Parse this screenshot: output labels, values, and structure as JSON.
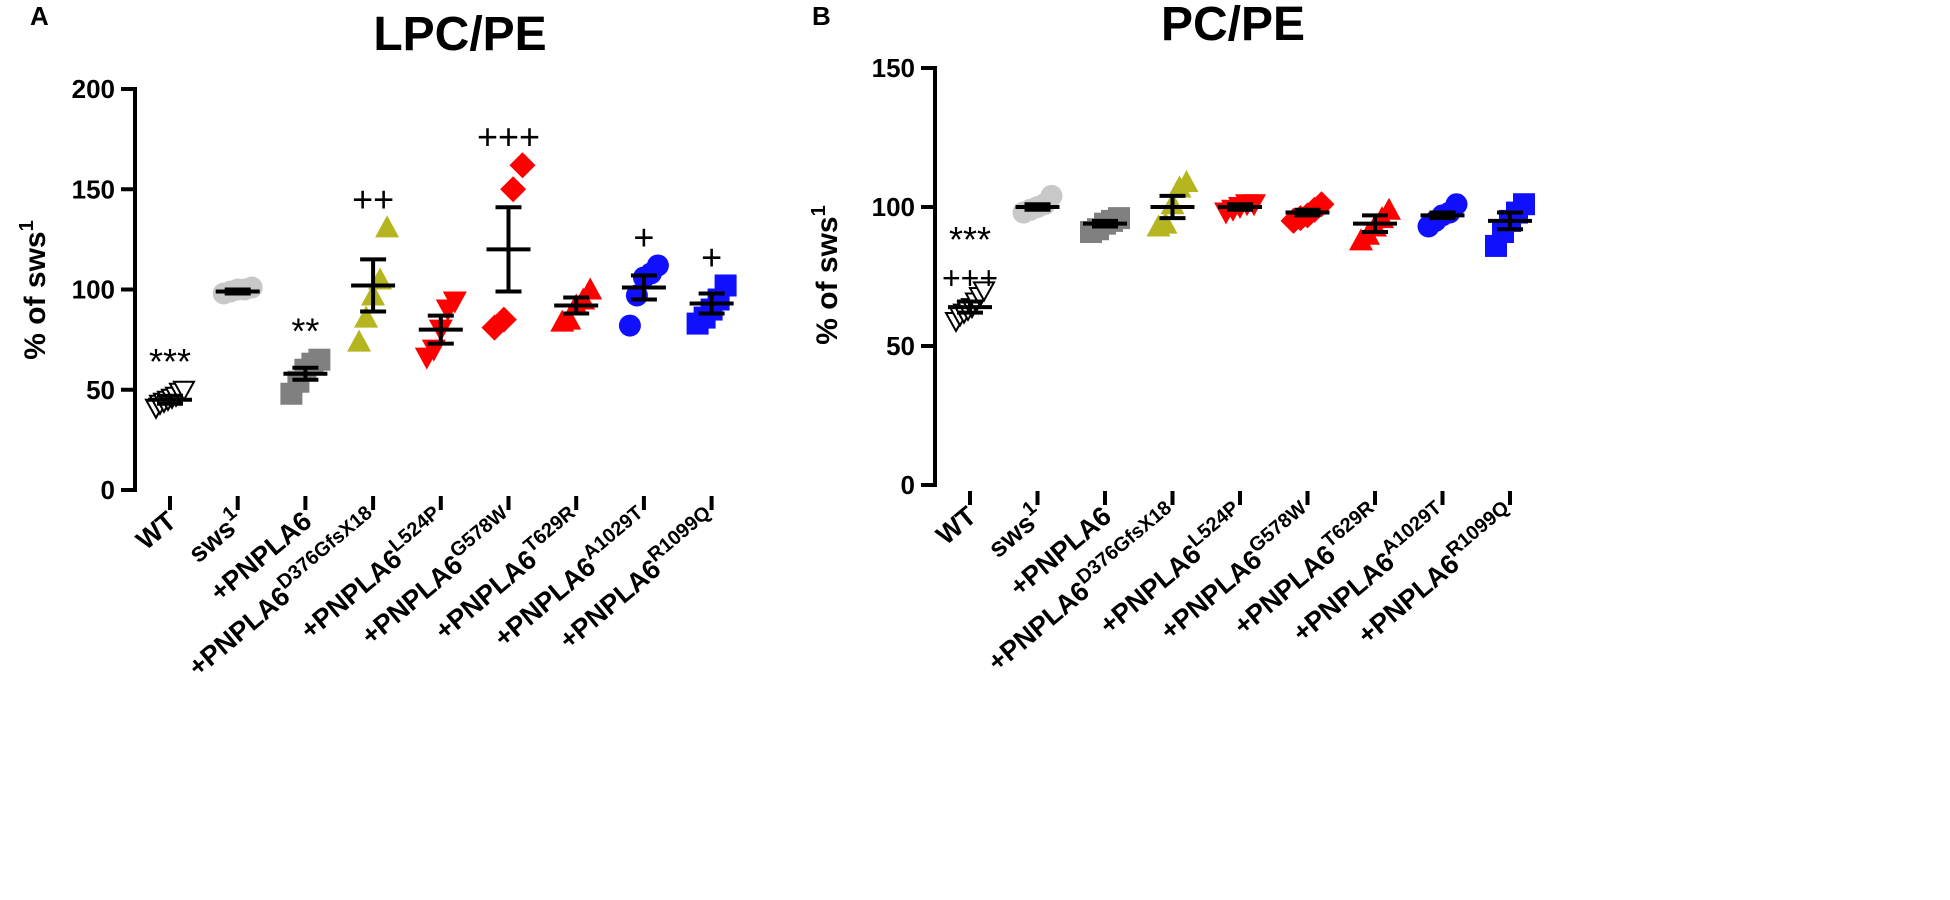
{
  "figure": {
    "colors": {
      "axis": "#000000",
      "white": "#ffffff",
      "sws1": "#c8c8c8",
      "null": "#808080",
      "L524P_G578W": "#ff0000",
      "yellow": "#b5b520",
      "blue": "#1010ff"
    }
  },
  "chart_data": [
    {
      "panel_label": "A",
      "title": "LPC/PE",
      "type": "scatter",
      "ylabel": "% of sws",
      "ylabel_superscript": "1",
      "yticks": [
        "0",
        "50",
        "100",
        "150",
        "200"
      ],
      "ylim": [
        0,
        200
      ],
      "groups": [
        {
          "label": "WT",
          "sup": "",
          "marker": "triangle-down-open",
          "color": "#000000",
          "values": [
            41,
            43,
            44,
            45,
            46,
            47,
            49,
            50
          ],
          "mean": 45,
          "sem": 2,
          "annotation": "***"
        },
        {
          "label": "sws",
          "sup": "1",
          "marker": "circle",
          "color": "#c8c8c8",
          "values": [
            98,
            99,
            100,
            100,
            101
          ],
          "mean": 99,
          "sem": 1,
          "annotation": ""
        },
        {
          "label": "+PNPLA6",
          "sup": "",
          "marker": "square",
          "color": "#808080",
          "values": [
            48,
            54,
            60,
            63,
            65
          ],
          "mean": 58,
          "sem": 3,
          "annotation": "**"
        },
        {
          "label": "+PNPLA6",
          "sup": "D376GfsX18",
          "marker": "triangle-up",
          "color": "#b5b520",
          "values": [
            74,
            86,
            97,
            105,
            131
          ],
          "mean": 102,
          "sem": 13,
          "annotation": "++"
        },
        {
          "label": "+PNPLA6",
          "sup": "L524P",
          "marker": "triangle-down",
          "color": "#ff0000",
          "values": [
            66,
            70,
            80,
            90,
            94
          ],
          "mean": 80,
          "sem": 7,
          "annotation": ""
        },
        {
          "label": "+PNPLA6",
          "sup": "G578W",
          "marker": "diamond",
          "color": "#ff0000",
          "values": [
            81,
            85,
            150,
            162
          ],
          "mean": 120,
          "sem": 21,
          "annotation": "+++"
        },
        {
          "label": "+PNPLA6",
          "sup": "T629R",
          "marker": "triangle-up",
          "color": "#ff0000",
          "values": [
            84,
            85,
            92,
            95,
            100
          ],
          "mean": 92,
          "sem": 4,
          "annotation": ""
        },
        {
          "label": "+PNPLA6",
          "sup": "A1029T",
          "marker": "circle",
          "color": "#1010ff",
          "values": [
            82,
            97,
            106,
            108,
            112
          ],
          "mean": 101,
          "sem": 6,
          "annotation": "+"
        },
        {
          "label": "+PNPLA6",
          "sup": "R1099Q",
          "marker": "square",
          "color": "#1010ff",
          "values": [
            83,
            86,
            90,
            95,
            102
          ],
          "mean": 93,
          "sem": 5,
          "annotation": "+"
        }
      ]
    },
    {
      "panel_label": "B",
      "title": "PC/PE",
      "type": "scatter",
      "ylabel": "% of sws",
      "ylabel_superscript": "1",
      "yticks": [
        "0",
        "50",
        "100",
        "150"
      ],
      "ylim": [
        0,
        150
      ],
      "groups": [
        {
          "label": "WT",
          "sup": "",
          "marker": "triangle-down-open",
          "color": "#000000",
          "values": [
            59,
            61,
            62,
            63,
            64,
            66,
            68,
            70
          ],
          "mean": 64,
          "sem": 2,
          "annotation": "***",
          "annotation2": "+++"
        },
        {
          "label": "sws",
          "sup": "1",
          "marker": "circle",
          "color": "#c8c8c8",
          "values": [
            98,
            99,
            100,
            101,
            104
          ],
          "mean": 100,
          "sem": 1,
          "annotation": ""
        },
        {
          "label": "+PNPLA6",
          "sup": "",
          "marker": "square",
          "color": "#808080",
          "values": [
            91,
            92,
            94,
            95,
            96
          ],
          "mean": 94,
          "sem": 1,
          "annotation": ""
        },
        {
          "label": "+PNPLA6",
          "sup": "D376GfsX18",
          "marker": "triangle-up",
          "color": "#b5b520",
          "values": [
            93,
            94,
            101,
            107,
            109
          ],
          "mean": 100,
          "sem": 4,
          "annotation": ""
        },
        {
          "label": "+PNPLA6",
          "sup": "L524P",
          "marker": "triangle-down",
          "color": "#ff0000",
          "values": [
            98,
            99,
            100,
            101,
            101
          ],
          "mean": 100,
          "sem": 1,
          "annotation": ""
        },
        {
          "label": "+PNPLA6",
          "sup": "G578W",
          "marker": "diamond",
          "color": "#ff0000",
          "values": [
            95,
            96,
            97,
            99,
            101
          ],
          "mean": 98,
          "sem": 1,
          "annotation": ""
        },
        {
          "label": "+PNPLA6",
          "sup": "T629R",
          "marker": "triangle-up",
          "color": "#ff0000",
          "values": [
            88,
            90,
            93,
            96,
            99
          ],
          "mean": 94,
          "sem": 3,
          "annotation": ""
        },
        {
          "label": "+PNPLA6",
          "sup": "A1029T",
          "marker": "circle",
          "color": "#1010ff",
          "values": [
            93,
            95,
            97,
            98,
            101
          ],
          "mean": 97,
          "sem": 1,
          "annotation": ""
        },
        {
          "label": "+PNPLA6",
          "sup": "R1099Q",
          "marker": "square",
          "color": "#1010ff",
          "values": [
            86,
            91,
            95,
            98,
            101
          ],
          "mean": 95,
          "sem": 3,
          "annotation": ""
        }
      ]
    }
  ]
}
